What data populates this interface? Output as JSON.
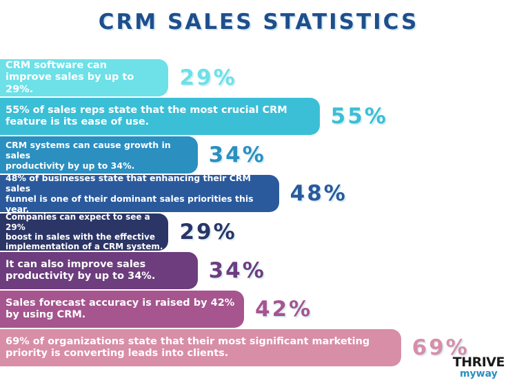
{
  "chart_data": {
    "type": "bar",
    "title": "CRM SALES STATISTICS",
    "categories": [
      "CRM software can\nimprove sales by up to 29%.",
      "55% of sales reps state that the most crucial CRM\nfeature is its ease of use.",
      "CRM systems can cause growth in sales\nproductivity by up to 34%.",
      "48% of businesses state that enhancing their CRM sales\nfunnel is one of their dominant sales priorities this year.",
      "Companies can expect to see a 29%\nboost in sales with the effective\nimplementation of a CRM system.",
      "It can also improve sales\nproductivity by up to 34%.",
      "Sales forecast accuracy is raised by 42%\nby using CRM.",
      "69% of organizations state that their most significant marketing\npriority is converting leads into clients."
    ],
    "values": [
      29,
      55,
      34,
      48,
      29,
      34,
      42,
      69
    ],
    "value_labels": [
      "29%",
      "55%",
      "34%",
      "48%",
      "29%",
      "34%",
      "42%",
      "69%"
    ],
    "colors": [
      "#6de0e8",
      "#3bbfd6",
      "#2b8fc0",
      "#2a5a9c",
      "#2b3566",
      "#6d3d7e",
      "#a6558e",
      "#d88ea7"
    ],
    "logo": [
      "THRIVE",
      "myway"
    ]
  }
}
